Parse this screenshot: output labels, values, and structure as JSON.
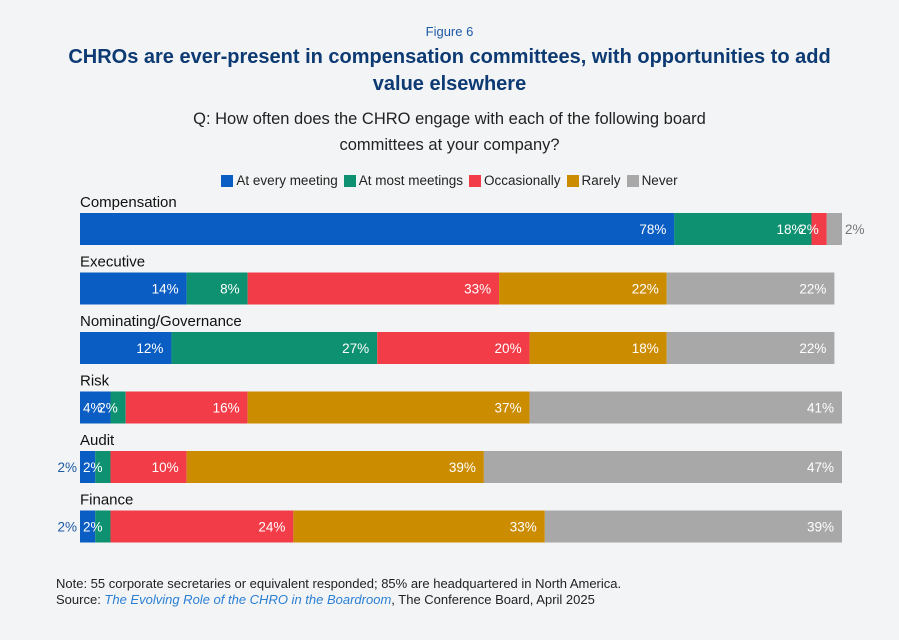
{
  "figure_label": "Figure 6",
  "title": "CHROs are ever-present in compensation committees, with opportunities to add value elsewhere",
  "question": "Q: How often does the CHRO engage with each of the following board committees at your company?",
  "note": "Note: 55 corporate secretaries or equivalent responded; 85% are headquartered in North America.",
  "source_prefix": "Source: ",
  "source_title": "The Evolving Role of the CHRO in the Boardroom",
  "source_suffix": ", The Conference Board, April 2025",
  "chart_data": {
    "type": "bar",
    "orientation": "horizontal",
    "stacked": true,
    "legend_position": "top",
    "xlim": [
      0,
      100
    ],
    "grid": false,
    "categories": [
      "Compensation",
      "Executive",
      "Nominating/Governance",
      "Risk",
      "Audit",
      "Finance"
    ],
    "series": [
      {
        "name": "At every meeting",
        "color": "#0a5dc2",
        "values": [
          78,
          14,
          12,
          4,
          2,
          2
        ]
      },
      {
        "name": "At most meetings",
        "color": "#0e9170",
        "values": [
          18,
          8,
          27,
          2,
          2,
          2
        ]
      },
      {
        "name": "Occasionally",
        "color": "#f23d49",
        "values": [
          2,
          33,
          20,
          16,
          10,
          24
        ]
      },
      {
        "name": "Rarely",
        "color": "#cc8c00",
        "values": [
          0,
          22,
          18,
          37,
          39,
          33
        ]
      },
      {
        "name": "Never",
        "color": "#a8a8a8",
        "values": [
          2,
          22,
          22,
          41,
          47,
          39
        ]
      }
    ]
  }
}
